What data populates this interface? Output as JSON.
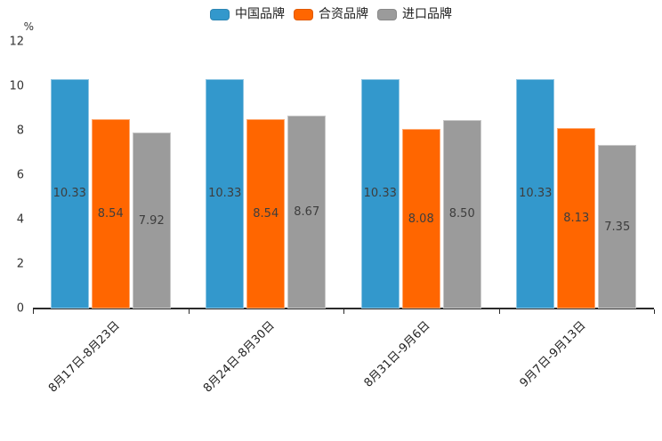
{
  "chart_data": {
    "type": "bar",
    "title": "",
    "unit_label": "%",
    "categories": [
      "8月17日-8月23日",
      "8月24日-8月30日",
      "8月31日-9月6日",
      "9月7日-9月13日"
    ],
    "series": [
      {
        "name": "中国品牌",
        "color": "#3398CC",
        "values": [
          10.33,
          10.33,
          10.33,
          10.33
        ]
      },
      {
        "name": "合资品牌",
        "color": "#FF6600",
        "values": [
          8.54,
          8.54,
          8.08,
          8.13
        ]
      },
      {
        "name": "进口品牌",
        "color": "#9B9B9B",
        "values": [
          7.92,
          8.67,
          8.5,
          7.35
        ]
      }
    ],
    "value_labels": [
      [
        "10.33",
        "8.54",
        "7.92"
      ],
      [
        "10.33",
        "8.54",
        "8.67"
      ],
      [
        "10.33",
        "8.08",
        "8.50"
      ],
      [
        "10.33",
        "8.13",
        "7.35"
      ]
    ],
    "y_ticks": [
      "0",
      "2",
      "4",
      "6",
      "8",
      "10",
      "12"
    ],
    "ylim": [
      0,
      12
    ],
    "grid": false,
    "legend_position": "top",
    "colors": {
      "axis": "#2b2b2b",
      "tick_text": "#333333",
      "bar_value_text": "#3d3d3d"
    }
  }
}
